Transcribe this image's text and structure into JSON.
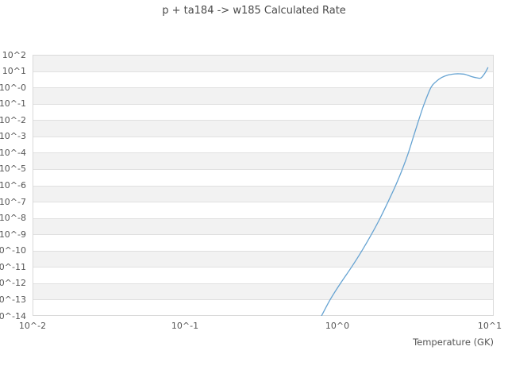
{
  "chart": {
    "title": "p + ta184 -> w185 Calculated Rate",
    "x_axis_label": "Temperature (GK)"
  },
  "colors": {
    "line": "#66a3d2",
    "band_gray": "#f2f2f2",
    "gridline": "#e0e0e0",
    "tick_text": "#555555",
    "title_text": "#4a4a4a"
  },
  "chart_data": {
    "type": "line",
    "title": "p + ta184 -> w185 Calculated Rate",
    "xlabel": "Temperature (GK)",
    "ylabel": "",
    "x_scale": "log",
    "y_scale": "log",
    "xlim": [
      0.01,
      10.7
    ],
    "ylim": [
      1e-14,
      100
    ],
    "x_tick_labels": [
      "10^-2",
      "10^-1",
      "10^0",
      "10^1"
    ],
    "y_tick_labels": [
      "10^2",
      "10^1",
      "10^-0",
      "10^-1",
      "10^-2",
      "10^-3",
      "10^-4",
      "10^-5",
      "10^-6",
      "10^-7",
      "10^-8",
      "10^-9",
      "10^-10",
      "10^-11",
      "10^-12",
      "10^-13",
      "10^-14"
    ],
    "grid": "horizontal gridlines only, alternating gray/white decade bands",
    "legend": false,
    "series": [
      {
        "name": "calculated rate",
        "points": [
          [
            0.787,
            1e-14
          ],
          [
            0.898,
            1e-13
          ],
          [
            1.049,
            1e-12
          ],
          [
            1.241,
            1e-11
          ],
          [
            1.451,
            1e-10
          ],
          [
            1.675,
            1e-09
          ],
          [
            1.912,
            1e-08
          ],
          [
            2.154,
            1e-07
          ],
          [
            2.415,
            1e-06
          ],
          [
            2.674,
            1e-05
          ],
          [
            2.925,
            0.0001
          ],
          [
            3.162,
            0.001
          ],
          [
            3.419,
            0.01
          ],
          [
            3.718,
            0.1
          ],
          [
            4.118,
            1.0
          ],
          [
            4.45,
            2.3
          ],
          [
            4.83,
            4.0
          ],
          [
            5.35,
            5.8
          ],
          [
            5.9,
            6.7
          ],
          [
            6.35,
            6.8
          ],
          [
            6.9,
            6.3
          ],
          [
            7.6,
            4.6
          ],
          [
            8.2,
            3.9
          ],
          [
            8.75,
            3.8
          ],
          [
            9.3,
            7.5
          ],
          [
            9.75,
            17.0
          ]
        ]
      }
    ]
  }
}
